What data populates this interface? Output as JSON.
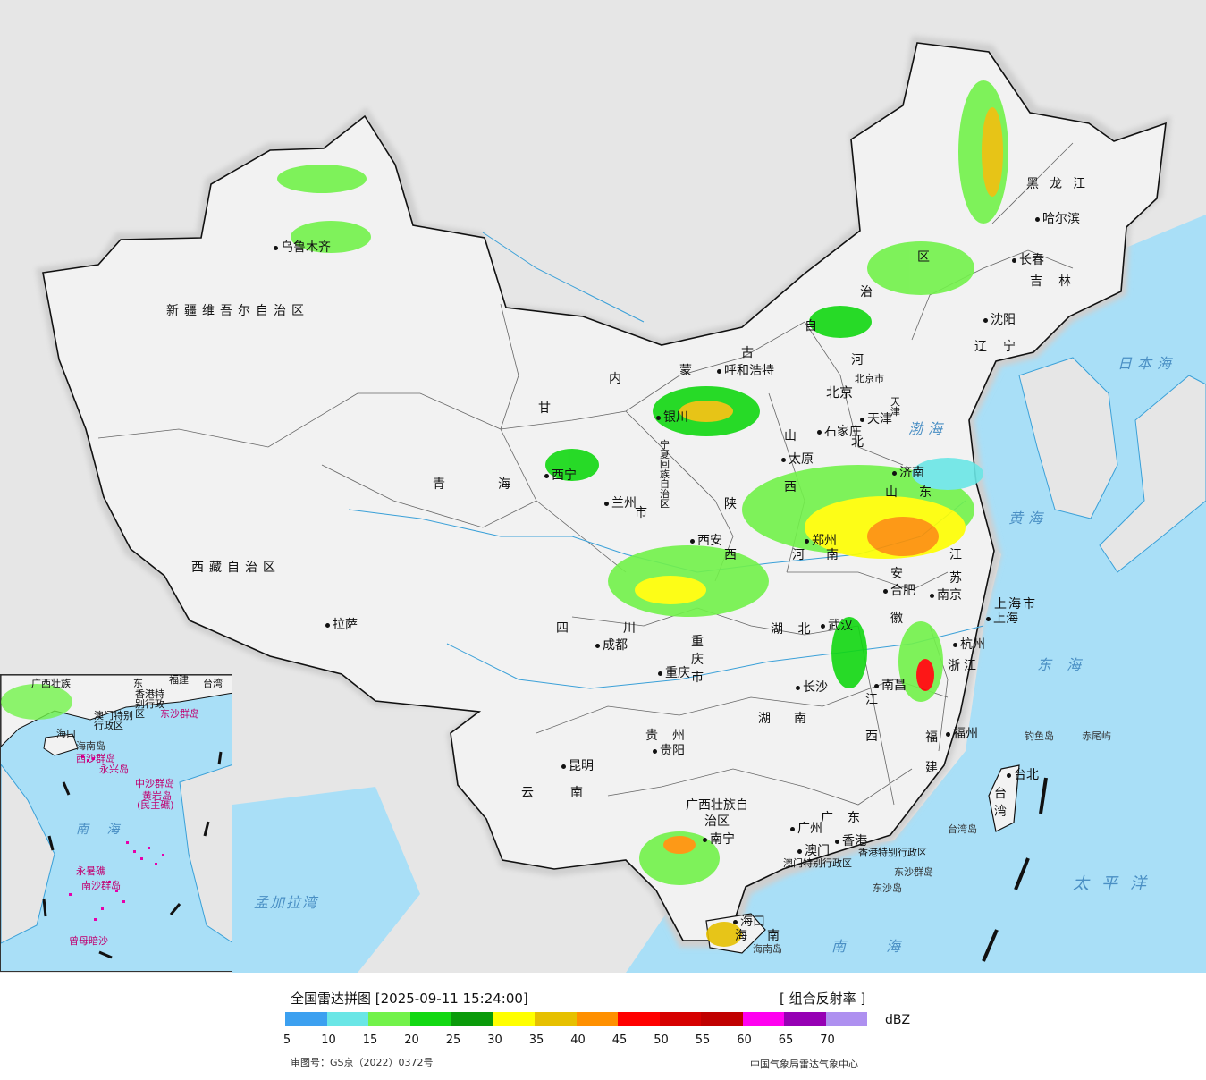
{
  "map": {
    "provinces": [
      {
        "id": "xinjiang",
        "label": "新疆维吾尔自治区"
      },
      {
        "id": "xizang",
        "label": "西藏自治区"
      },
      {
        "id": "qinghai-1",
        "label": "青"
      },
      {
        "id": "qinghai-2",
        "label": "海"
      },
      {
        "id": "gansu",
        "label": "甘"
      },
      {
        "id": "sichuan",
        "label": "四"
      },
      {
        "id": "sichuan-2",
        "label": "川"
      },
      {
        "id": "neimenggu-1",
        "label": "内"
      },
      {
        "id": "neimenggu-2",
        "label": "蒙"
      },
      {
        "id": "neimenggu-3",
        "label": "古"
      },
      {
        "id": "neimenggu-4",
        "label": "自"
      },
      {
        "id": "neimenggu-5",
        "label": "治"
      },
      {
        "id": "neimenggu-6",
        "label": "区"
      },
      {
        "id": "heilongjiang",
        "label": "黑龙江"
      },
      {
        "id": "jilin",
        "label": "吉林"
      },
      {
        "id": "liaoning",
        "label": "辽宁"
      },
      {
        "id": "hebei-1",
        "label": "河"
      },
      {
        "id": "hebei-2",
        "label": "北"
      },
      {
        "id": "shanxi-1",
        "label": "山"
      },
      {
        "id": "shanxi-2",
        "label": "西"
      },
      {
        "id": "shaanxi-1",
        "label": "陕"
      },
      {
        "id": "shaanxi-2",
        "label": "西"
      },
      {
        "id": "ningxia",
        "label": "宁夏回族自治区"
      },
      {
        "id": "shandong-1",
        "label": "山"
      },
      {
        "id": "shandong-2",
        "label": "东"
      },
      {
        "id": "henan-1",
        "label": "河"
      },
      {
        "id": "henan-2",
        "label": "南"
      },
      {
        "id": "jiangsu-1",
        "label": "江"
      },
      {
        "id": "jiangsu-2",
        "label": "苏"
      },
      {
        "id": "anhui-1",
        "label": "安"
      },
      {
        "id": "anhui-2",
        "label": "徽"
      },
      {
        "id": "hubei",
        "label": "湖  北"
      },
      {
        "id": "chongqing",
        "label": "重庆市"
      },
      {
        "id": "shanghai",
        "label": "上海市"
      },
      {
        "id": "zhejiang",
        "label": "浙江"
      },
      {
        "id": "jiangxi-1",
        "label": "江"
      },
      {
        "id": "jiangxi-2",
        "label": "西"
      },
      {
        "id": "hunan-1",
        "label": "湖"
      },
      {
        "id": "hunan-2",
        "label": "南"
      },
      {
        "id": "fujian-1",
        "label": "福"
      },
      {
        "id": "fujian-2",
        "label": "建"
      },
      {
        "id": "guizhou",
        "label": "贵州"
      },
      {
        "id": "yunnan-1",
        "label": "云"
      },
      {
        "id": "yunnan-2",
        "label": "南"
      },
      {
        "id": "guangxi",
        "label": "广西壮族自治区"
      },
      {
        "id": "guangdong",
        "label": "广东"
      },
      {
        "id": "hainan",
        "label": "海南"
      },
      {
        "id": "taiwan",
        "label": "台湾"
      },
      {
        "id": "hk",
        "label": "香港特别行政区"
      },
      {
        "id": "macau",
        "label": "澳门特别行政区"
      },
      {
        "id": "tianjin",
        "label": "天津"
      },
      {
        "id": "beijing-city",
        "label": "北京市"
      },
      {
        "id": "gansu-city-suffix",
        "label": "市"
      }
    ],
    "cities": [
      {
        "id": "urumqi",
        "label": "乌鲁木齐"
      },
      {
        "id": "lhasa",
        "label": "拉萨"
      },
      {
        "id": "xining",
        "label": "西宁"
      },
      {
        "id": "lanzhou",
        "label": "兰州"
      },
      {
        "id": "yinchuan",
        "label": "银川"
      },
      {
        "id": "hohhot",
        "label": "呼和浩特"
      },
      {
        "id": "harbin",
        "label": "哈尔滨"
      },
      {
        "id": "changchun",
        "label": "长春"
      },
      {
        "id": "shenyang",
        "label": "沈阳"
      },
      {
        "id": "beijing",
        "label": "北京"
      },
      {
        "id": "tianjin-city",
        "label": "天津"
      },
      {
        "id": "shijiazhuang",
        "label": "石家庄"
      },
      {
        "id": "taiyuan",
        "label": "太原"
      },
      {
        "id": "jinan",
        "label": "济南"
      },
      {
        "id": "zhengzhou",
        "label": "郑州"
      },
      {
        "id": "xian",
        "label": "西安"
      },
      {
        "id": "hefei",
        "label": "合肥"
      },
      {
        "id": "nanjing",
        "label": "南京"
      },
      {
        "id": "shanghai-city",
        "label": "上海"
      },
      {
        "id": "hangzhou",
        "label": "杭州"
      },
      {
        "id": "wuhan",
        "label": "武汉"
      },
      {
        "id": "chengdu",
        "label": "成都"
      },
      {
        "id": "chongqing-city",
        "label": "重庆"
      },
      {
        "id": "changsha",
        "label": "长沙"
      },
      {
        "id": "nanchang",
        "label": "南昌"
      },
      {
        "id": "fuzhou",
        "label": "福州"
      },
      {
        "id": "guiyang",
        "label": "贵阳"
      },
      {
        "id": "kunming",
        "label": "昆明"
      },
      {
        "id": "nanning",
        "label": "南宁"
      },
      {
        "id": "guangzhou",
        "label": "广州"
      },
      {
        "id": "hongkong",
        "label": "香港"
      },
      {
        "id": "macau-city",
        "label": "澳门"
      },
      {
        "id": "haikou",
        "label": "海口"
      },
      {
        "id": "taipei",
        "label": "台北"
      }
    ],
    "seas": [
      {
        "id": "bohai",
        "label": "渤海"
      },
      {
        "id": "huanghai",
        "label": "黄海"
      },
      {
        "id": "donghai",
        "label": "东 海"
      },
      {
        "id": "nanhai",
        "label": "南 海"
      },
      {
        "id": "taipingyang",
        "label": "太平洋"
      },
      {
        "id": "ribenhai",
        "label": "日本海"
      },
      {
        "id": "mengjialawan",
        "label": "孟加拉湾"
      }
    ],
    "islands": [
      {
        "id": "diaoyu",
        "label": "钓鱼岛"
      },
      {
        "id": "chiwei",
        "label": "赤尾屿"
      },
      {
        "id": "taiwan-island",
        "label": "台湾岛"
      },
      {
        "id": "dongsha-islands",
        "label": "东沙群岛"
      },
      {
        "id": "dongsha",
        "label": "东沙岛"
      },
      {
        "id": "hainan-island",
        "label": "海南岛"
      }
    ],
    "inset": {
      "labels": [
        {
          "id": "inset-guangxi",
          "label": "广西壮族"
        },
        {
          "id": "inset-guangdong",
          "label": "东"
        },
        {
          "id": "inset-fujian",
          "label": "福建"
        },
        {
          "id": "inset-taiwan",
          "label": "台湾"
        },
        {
          "id": "inset-hk",
          "label": "香港特别行政区"
        },
        {
          "id": "inset-macau",
          "label": "澳门特别行政区"
        },
        {
          "id": "inset-dongsha",
          "label": "东沙群岛"
        },
        {
          "id": "inset-haikou",
          "label": "海口"
        },
        {
          "id": "inset-hainan",
          "label": "海南岛"
        },
        {
          "id": "inset-xisha",
          "label": "西沙群岛"
        },
        {
          "id": "inset-yongxing",
          "label": "永兴岛"
        },
        {
          "id": "inset-zhongsha",
          "label": "中沙群岛"
        },
        {
          "id": "inset-huangyan",
          "label": "黄岩岛"
        },
        {
          "id": "inset-minzhu",
          "label": "(民主礁)"
        },
        {
          "id": "inset-nanhai",
          "label": "南  海"
        },
        {
          "id": "inset-yongshu",
          "label": "永暑礁"
        },
        {
          "id": "inset-nansha",
          "label": "南沙群岛"
        },
        {
          "id": "inset-zengmu",
          "label": "曾母暗沙"
        }
      ]
    }
  },
  "legend": {
    "title": "全国雷达拼图 [2025-09-11 15:24:00]",
    "product": "[ 组合反射率 ]",
    "unit": "dBZ",
    "ticks": [
      "5",
      "10",
      "15",
      "20",
      "25",
      "30",
      "35",
      "40",
      "45",
      "50",
      "55",
      "60",
      "65",
      "70"
    ],
    "colors": [
      "#3ca0f0",
      "#6ae6e6",
      "#72f24a",
      "#12d812",
      "#0a9a0a",
      "#ffff00",
      "#e6c000",
      "#ff9000",
      "#ff0000",
      "#d60000",
      "#c00000",
      "#ff00f0",
      "#9600b4",
      "#ae90f0"
    ],
    "review_no": "审图号：GS京（2022）0372号",
    "source": "中国气象局雷达气象中心"
  }
}
